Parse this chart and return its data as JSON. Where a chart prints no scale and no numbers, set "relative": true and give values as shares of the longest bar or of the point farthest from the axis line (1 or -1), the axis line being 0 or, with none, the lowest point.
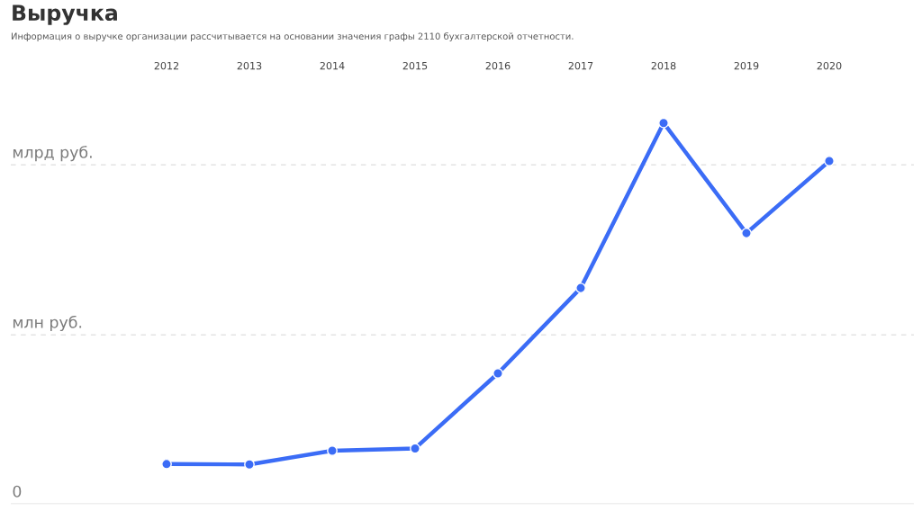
{
  "chart_data": {
    "type": "line",
    "title": "Выручка",
    "subtitle": "Информация о выручке организации рассчитывается на основании значения графы 2110 бухгалтерской отчетности.",
    "categories": [
      "2012",
      "2013",
      "2014",
      "2015",
      "2016",
      "2017",
      "2018",
      "2019",
      "2020"
    ],
    "values": [
      0.105,
      0.104,
      0.14,
      0.146,
      0.343,
      0.567,
      1,
      0.711,
      0.9
    ],
    "color": "#3b6cf6",
    "relative": true,
    "marker": "circle",
    "line_style": "solid",
    "tick_labels": "x",
    "ref_lines": [
      {
        "axis": "y",
        "value": 0.89,
        "label": "млрд руб.",
        "color": "#e4e4e4",
        "line_style": "dashed"
      },
      {
        "axis": "y",
        "value": 0.444,
        "label": "млн руб.",
        "color": "#e4e4e4",
        "line_style": "dashed"
      },
      {
        "axis": "y",
        "value": 0,
        "label": "0",
        "color": "#e0e0e0",
        "line_style": "solid"
      }
    ]
  }
}
